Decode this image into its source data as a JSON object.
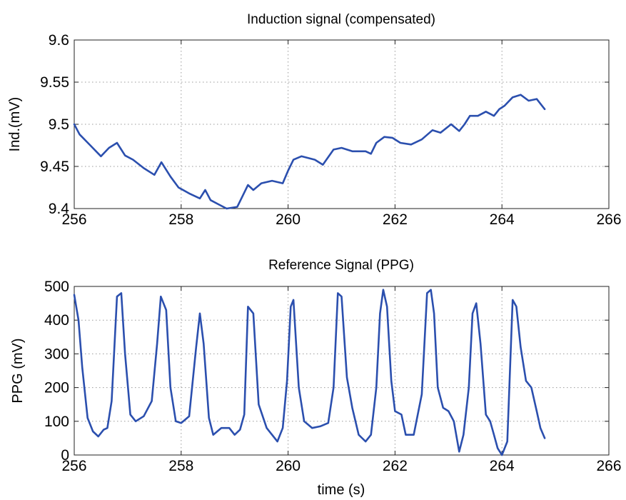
{
  "colors": {
    "series": "#2b4fae",
    "grid": "#9a9a9a",
    "axes": "#222222"
  },
  "chart_data": [
    {
      "type": "line",
      "title": "Induction signal (compensated)",
      "xlabel": "",
      "ylabel": "Ind.(mV)",
      "xlim": [
        256,
        266
      ],
      "ylim": [
        9.4,
        9.6
      ],
      "xticks": [
        256,
        258,
        260,
        262,
        264,
        266
      ],
      "xtick_labels": [
        "256",
        "258",
        "260",
        "262",
        "264",
        "266"
      ],
      "yticks": [
        9.4,
        9.45,
        9.5,
        9.55,
        9.6
      ],
      "ytick_labels": [
        "9.4",
        "9.45",
        "9.5",
        "9.55",
        "9.6"
      ],
      "grid": true,
      "series": [
        {
          "color": "#2b4fae",
          "x": [
            256.0,
            256.1,
            256.3,
            256.5,
            256.65,
            256.8,
            256.95,
            257.1,
            257.3,
            257.5,
            257.63,
            257.8,
            257.95,
            258.15,
            258.35,
            258.45,
            258.55,
            258.7,
            258.85,
            259.05,
            259.15,
            259.25,
            259.35,
            259.5,
            259.7,
            259.9,
            260.0,
            260.1,
            260.25,
            260.5,
            260.65,
            260.85,
            261.0,
            261.2,
            261.45,
            261.55,
            261.65,
            261.8,
            261.95,
            262.1,
            262.3,
            262.5,
            262.7,
            262.85,
            263.05,
            263.2,
            263.3,
            263.4,
            263.55,
            263.7,
            263.85,
            263.95,
            264.05,
            264.2,
            264.35,
            264.5,
            264.65,
            264.8
          ],
          "y": [
            9.5,
            9.488,
            9.475,
            9.462,
            9.472,
            9.478,
            9.463,
            9.458,
            9.448,
            9.44,
            9.455,
            9.438,
            9.425,
            9.418,
            9.412,
            9.422,
            9.41,
            9.405,
            9.4,
            9.402,
            9.415,
            9.428,
            9.422,
            9.43,
            9.433,
            9.43,
            9.445,
            9.458,
            9.462,
            9.458,
            9.452,
            9.47,
            9.472,
            9.468,
            9.468,
            9.465,
            9.478,
            9.485,
            9.484,
            9.478,
            9.476,
            9.482,
            9.493,
            9.49,
            9.5,
            9.492,
            9.5,
            9.51,
            9.51,
            9.515,
            9.51,
            9.518,
            9.522,
            9.532,
            9.535,
            9.528,
            9.53,
            9.518
          ]
        }
      ]
    },
    {
      "type": "line",
      "title": "Reference Signal (PPG)",
      "xlabel": "time (s)",
      "ylabel": "PPG (mV)",
      "xlim": [
        256,
        266
      ],
      "ylim": [
        0,
        500
      ],
      "xticks": [
        256,
        258,
        260,
        262,
        264,
        266
      ],
      "xtick_labels": [
        "256",
        "258",
        "260",
        "262",
        "264",
        "266"
      ],
      "yticks": [
        0,
        100,
        200,
        300,
        400,
        500
      ],
      "ytick_labels": [
        "0",
        "100",
        "200",
        "300",
        "400",
        "500"
      ],
      "grid": true,
      "series": [
        {
          "color": "#2b4fae",
          "x": [
            256.0,
            256.08,
            256.15,
            256.25,
            256.35,
            256.45,
            256.55,
            256.62,
            256.7,
            256.8,
            256.88,
            256.95,
            257.05,
            257.15,
            257.3,
            257.45,
            257.55,
            257.62,
            257.72,
            257.8,
            257.9,
            258.0,
            258.15,
            258.28,
            258.35,
            258.42,
            258.52,
            258.6,
            258.75,
            258.9,
            259.0,
            259.1,
            259.18,
            259.25,
            259.35,
            259.45,
            259.6,
            259.8,
            259.9,
            259.98,
            260.05,
            260.1,
            260.2,
            260.3,
            260.45,
            260.6,
            260.75,
            260.85,
            260.93,
            261.0,
            261.1,
            261.2,
            261.32,
            261.45,
            261.55,
            261.65,
            261.72,
            261.78,
            261.85,
            261.93,
            262.0,
            262.12,
            262.2,
            262.35,
            262.5,
            262.6,
            262.67,
            262.73,
            262.8,
            262.9,
            263.0,
            263.1,
            263.2,
            263.28,
            263.38,
            263.45,
            263.52,
            263.6,
            263.7,
            263.78,
            263.85,
            263.92,
            264.0,
            264.1,
            264.2,
            264.27,
            264.35,
            264.45,
            264.55,
            264.65,
            264.72,
            264.8
          ],
          "y": [
            475,
            400,
            260,
            110,
            70,
            55,
            75,
            80,
            160,
            470,
            480,
            300,
            120,
            100,
            115,
            160,
            330,
            470,
            430,
            200,
            100,
            95,
            115,
            320,
            420,
            330,
            110,
            60,
            80,
            80,
            60,
            75,
            120,
            440,
            420,
            150,
            80,
            40,
            80,
            220,
            440,
            460,
            200,
            100,
            80,
            85,
            95,
            200,
            480,
            470,
            230,
            140,
            60,
            40,
            60,
            200,
            420,
            490,
            440,
            220,
            130,
            120,
            60,
            60,
            180,
            480,
            490,
            420,
            200,
            140,
            130,
            100,
            10,
            60,
            200,
            420,
            450,
            330,
            120,
            100,
            60,
            20,
            0,
            40,
            460,
            440,
            320,
            220,
            200,
            130,
            80,
            50
          ]
        }
      ]
    }
  ]
}
